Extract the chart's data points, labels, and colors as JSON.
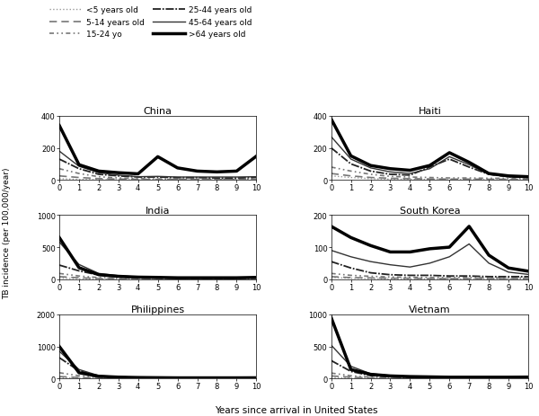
{
  "countries": [
    "China",
    "Haiti",
    "India",
    "South Korea",
    "Philippines",
    "Vietnam"
  ],
  "ylims": {
    "China": [
      0,
      400
    ],
    "Haiti": [
      0,
      400
    ],
    "India": [
      0,
      1000
    ],
    "South Korea": [
      0,
      200
    ],
    "Philippines": [
      0,
      2000
    ],
    "Vietnam": [
      0,
      1000
    ]
  },
  "yticks": {
    "China": [
      0,
      200,
      400
    ],
    "Haiti": [
      0,
      200,
      400
    ],
    "India": [
      0,
      500,
      1000
    ],
    "South Korea": [
      0,
      100,
      200
    ],
    "Philippines": [
      0,
      1000,
      2000
    ],
    "Vietnam": [
      0,
      500,
      1000
    ]
  },
  "x": [
    0,
    1,
    2,
    3,
    4,
    5,
    6,
    7,
    8,
    9,
    10
  ],
  "age_labels": [
    "<5 years old",
    "5-14 years old",
    "15-24 yo",
    "25-44 years old",
    "45-64 years old",
    ">64 years old"
  ],
  "data": {
    "China": {
      "<5": [
        8,
        3,
        2,
        1,
        1,
        1,
        1,
        1,
        1,
        1,
        1
      ],
      "5-14": [
        25,
        15,
        8,
        5,
        4,
        3,
        3,
        3,
        3,
        3,
        3
      ],
      "15-24": [
        70,
        40,
        20,
        12,
        8,
        6,
        5,
        5,
        5,
        5,
        5
      ],
      "25-44": [
        130,
        70,
        35,
        25,
        18,
        18,
        14,
        14,
        12,
        12,
        15
      ],
      "45-64": [
        180,
        85,
        45,
        30,
        20,
        22,
        18,
        18,
        18,
        18,
        20
      ],
      ">64": [
        340,
        95,
        55,
        45,
        38,
        145,
        75,
        55,
        50,
        55,
        148
      ]
    },
    "Haiti": {
      "<5": [
        25,
        15,
        8,
        5,
        4,
        3,
        3,
        3,
        3,
        3,
        3
      ],
      "5-14": [
        40,
        25,
        15,
        10,
        8,
        6,
        5,
        5,
        4,
        4,
        4
      ],
      "15-24": [
        80,
        55,
        35,
        22,
        18,
        15,
        12,
        12,
        10,
        10,
        10
      ],
      "25-44": [
        200,
        100,
        55,
        35,
        30,
        80,
        130,
        80,
        35,
        20,
        15
      ],
      "45-64": [
        270,
        130,
        75,
        50,
        40,
        70,
        145,
        95,
        35,
        20,
        15
      ],
      ">64": [
        380,
        150,
        90,
        70,
        60,
        90,
        170,
        110,
        40,
        25,
        20
      ]
    },
    "India": {
      "<5": [
        15,
        8,
        4,
        2,
        2,
        2,
        2,
        2,
        2,
        2,
        2
      ],
      "5-14": [
        40,
        22,
        12,
        8,
        6,
        6,
        5,
        5,
        5,
        5,
        5
      ],
      "15-24": [
        90,
        50,
        25,
        16,
        12,
        10,
        8,
        8,
        8,
        8,
        8
      ],
      "25-44": [
        220,
        130,
        65,
        40,
        28,
        25,
        20,
        20,
        20,
        20,
        25
      ],
      "45-64": [
        580,
        230,
        90,
        55,
        35,
        30,
        25,
        25,
        25,
        25,
        30
      ],
      ">64": [
        650,
        180,
        70,
        45,
        32,
        28,
        22,
        22,
        22,
        22,
        28
      ]
    },
    "South Korea": {
      "<5": [
        5,
        3,
        2,
        1,
        1,
        1,
        1,
        1,
        1,
        1,
        1
      ],
      "5-14": [
        8,
        5,
        4,
        3,
        3,
        2,
        2,
        2,
        2,
        2,
        2
      ],
      "15-24": [
        18,
        12,
        9,
        7,
        6,
        5,
        5,
        5,
        4,
        4,
        4
      ],
      "25-44": [
        55,
        35,
        20,
        14,
        12,
        12,
        10,
        10,
        8,
        8,
        8
      ],
      "45-64": [
        90,
        70,
        55,
        45,
        38,
        50,
        70,
        110,
        50,
        22,
        15
      ],
      ">64": [
        165,
        130,
        105,
        85,
        85,
        95,
        100,
        165,
        75,
        35,
        25
      ]
    },
    "Philippines": {
      "<5": [
        25,
        12,
        6,
        4,
        3,
        3,
        3,
        3,
        3,
        3,
        3
      ],
      "5-14": [
        60,
        30,
        15,
        10,
        7,
        7,
        6,
        6,
        5,
        5,
        5
      ],
      "15-24": [
        180,
        85,
        40,
        25,
        18,
        15,
        13,
        13,
        11,
        11,
        11
      ],
      "25-44": [
        650,
        240,
        75,
        45,
        32,
        28,
        23,
        23,
        23,
        23,
        28
      ],
      "45-64": [
        850,
        280,
        90,
        52,
        35,
        30,
        25,
        25,
        22,
        22,
        28
      ],
      ">64": [
        1000,
        180,
        70,
        42,
        30,
        25,
        20,
        20,
        20,
        20,
        22
      ]
    },
    "Vietnam": {
      "<5": [
        15,
        8,
        4,
        2,
        2,
        2,
        2,
        2,
        2,
        2,
        2
      ],
      "5-14": [
        40,
        20,
        10,
        6,
        4,
        4,
        4,
        4,
        4,
        4,
        4
      ],
      "15-24": [
        85,
        42,
        20,
        12,
        8,
        8,
        6,
        6,
        6,
        6,
        6
      ],
      "25-44": [
        280,
        110,
        45,
        28,
        18,
        18,
        16,
        16,
        14,
        14,
        14
      ],
      "45-64": [
        520,
        190,
        75,
        46,
        32,
        28,
        23,
        23,
        23,
        23,
        28
      ],
      ">64": [
        950,
        140,
        65,
        40,
        30,
        25,
        20,
        20,
        20,
        20,
        22
      ]
    }
  },
  "xlabel": "Years since arrival in United States",
  "ylabel": "TB incidence (per 100,000/year)",
  "background_color": "#ffffff"
}
